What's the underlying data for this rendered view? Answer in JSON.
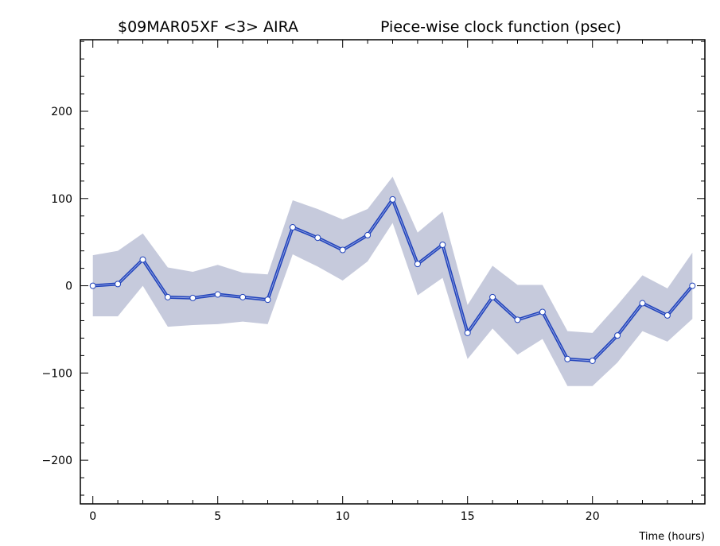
{
  "chart_data": {
    "type": "line",
    "title_left": "$09MAR05XF <3>  AIRA",
    "title_right": "Piece-wise clock function (psec)",
    "xlabel": "Time (hours)",
    "ylabel": "",
    "xlim": [
      -0.5,
      24.5
    ],
    "ylim": [
      -250,
      282
    ],
    "xticks": [
      0,
      5,
      10,
      15,
      20
    ],
    "xtick_labels": [
      "0",
      "5",
      "10",
      "15",
      "20"
    ],
    "yticks": [
      -200,
      -100,
      0,
      100,
      200
    ],
    "ytick_labels": [
      "−200",
      "−100",
      "0",
      "100",
      "200"
    ],
    "grid": false,
    "colors": {
      "line": "#2244bb",
      "band": "#c6cadc",
      "marker_fill": "#ffffff",
      "marker_edge": "#2244bb"
    },
    "series": [
      {
        "x": [
          0,
          1,
          2,
          3,
          4,
          5,
          6,
          7,
          8,
          9,
          10,
          11,
          12,
          13,
          14,
          15,
          16,
          17,
          18,
          19,
          20,
          21,
          22,
          23,
          24
        ],
        "y": [
          0,
          2,
          30,
          -13,
          -14,
          -10,
          -13,
          -16,
          67,
          55,
          41,
          58,
          99,
          25,
          47,
          -54,
          -13,
          -39,
          -30,
          -84,
          -86,
          -57,
          -20,
          -34,
          0
        ],
        "upper": [
          35,
          40,
          60,
          21,
          16,
          24,
          15,
          13,
          98,
          88,
          76,
          88,
          125,
          61,
          85,
          -22,
          23,
          1,
          1,
          -52,
          -54,
          -22,
          12,
          -3,
          38
        ],
        "lower": [
          -35,
          -35,
          0,
          -47,
          -45,
          -44,
          -41,
          -44,
          36,
          22,
          6,
          28,
          72,
          -11,
          9,
          -84,
          -49,
          -79,
          -61,
          -115,
          -115,
          -88,
          -52,
          -64,
          -38
        ]
      }
    ]
  }
}
